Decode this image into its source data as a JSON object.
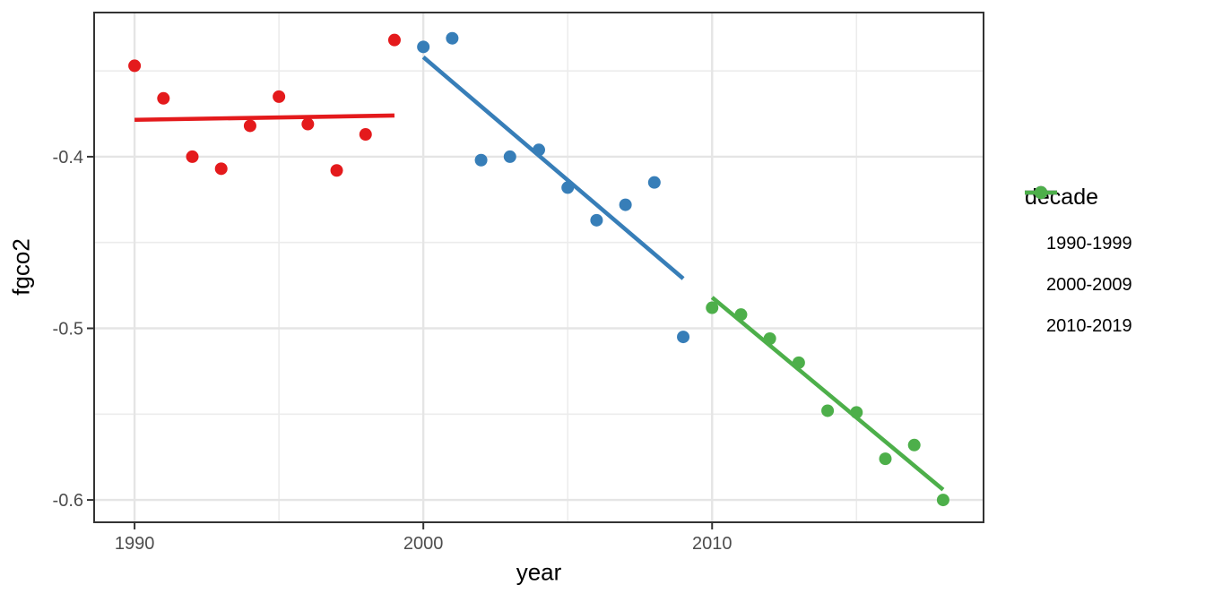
{
  "figure": {
    "background": "#FFFFFF"
  },
  "axes": {
    "x_title": "year",
    "y_title": "fgco2"
  },
  "legend": {
    "title": "decade"
  },
  "chart_data": {
    "type": "scatter",
    "title": "",
    "xlabel": "year",
    "ylabel": "fgco2",
    "xlim": [
      1988.6,
      2019.4
    ],
    "ylim": [
      -0.613,
      -0.316
    ],
    "grid": "on",
    "legend_title": "decade",
    "legend_position": "right",
    "x_major_ticks": [
      1990,
      2000,
      2010
    ],
    "x_major_tick_labels": [
      "1990",
      "2000",
      "2010"
    ],
    "x_minor_gridlines": [
      1995,
      2005,
      2015
    ],
    "y_major_ticks": [
      -0.4,
      -0.5,
      -0.6
    ],
    "y_major_tick_labels": [
      "-0.4",
      "-0.5",
      "-0.6"
    ],
    "y_minor_gridlines": [
      -0.35,
      -0.45,
      -0.55
    ],
    "colors": {
      "panel_border": "#333333",
      "grid_major": "#E5E5E5",
      "grid_minor": "#ECECEC",
      "tick_mark": "#333333",
      "tick_label": "#4D4D4D",
      "red": "#E41A1C",
      "blue": "#377EB8",
      "green": "#4DAF4A"
    },
    "series": [
      {
        "name": "1990-1999",
        "color": "#E41A1C",
        "x": [
          1990,
          1991,
          1992,
          1993,
          1994,
          1995,
          1996,
          1997,
          1998,
          1999
        ],
        "y": [
          -0.347,
          -0.366,
          -0.4,
          -0.407,
          -0.382,
          -0.365,
          -0.381,
          -0.408,
          -0.387,
          -0.332
        ],
        "trend": {
          "x": [
            1990,
            1999
          ],
          "y": [
            -0.3785,
            -0.376
          ]
        }
      },
      {
        "name": "2000-2009",
        "color": "#377EB8",
        "x": [
          2000,
          2001,
          2002,
          2003,
          2004,
          2005,
          2006,
          2007,
          2008,
          2009
        ],
        "y": [
          -0.336,
          -0.331,
          -0.402,
          -0.4,
          -0.396,
          -0.418,
          -0.437,
          -0.428,
          -0.415,
          -0.505
        ],
        "trend": {
          "x": [
            2000,
            2009
          ],
          "y": [
            -0.342,
            -0.471
          ]
        }
      },
      {
        "name": "2010-2019",
        "color": "#4DAF4A",
        "x": [
          2010,
          2011,
          2012,
          2013,
          2014,
          2015,
          2016,
          2017,
          2018
        ],
        "y": [
          -0.488,
          -0.492,
          -0.506,
          -0.52,
          -0.548,
          -0.549,
          -0.576,
          -0.568,
          -0.6
        ],
        "trend": {
          "x": [
            2010,
            2018
          ],
          "y": [
            -0.482,
            -0.594
          ]
        }
      }
    ]
  }
}
